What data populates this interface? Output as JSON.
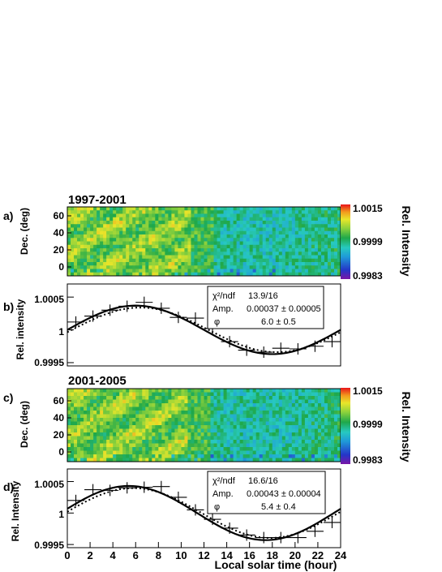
{
  "panels": {
    "a": {
      "letter": "a)",
      "period": "1997-2001",
      "ylabel": "Dec. (deg)",
      "yticks": [
        "60",
        "40",
        "20",
        "0"
      ],
      "colorbar": {
        "label": "Rel. Intensity",
        "max_label": "1.0015",
        "mid_label": "0.9999",
        "min_label": "0.9983"
      }
    },
    "b": {
      "letter": "b)",
      "ylabel": "Rel. intensity",
      "yticks": [
        "1.0005",
        "1",
        "0.9995"
      ],
      "stats": {
        "chi_label": "χ²/ndf",
        "chi_value": "13.9/16",
        "amp_label": "Amp.",
        "amp_value": "0.00037 ±  0.00005",
        "phi_label": "φ",
        "phi_value": "6.0 ±  0.5"
      }
    },
    "c": {
      "letter": "c)",
      "period": "2001-2005",
      "ylabel": "Dec. (deg)",
      "yticks": [
        "60",
        "40",
        "20",
        "0"
      ],
      "colorbar": {
        "label": "Rel. Intensity",
        "max_label": "1.0015",
        "mid_label": "0.9999",
        "min_label": "0.9983"
      }
    },
    "d": {
      "letter": "d)",
      "ylabel": "Rel. Intensity",
      "yticks": [
        "1.0005",
        "1",
        "0.9995"
      ],
      "stats": {
        "chi_label": "χ²/ndf",
        "chi_value": "16.6/16",
        "amp_label": "Amp.",
        "amp_value": "0.00043 ±  0.00004",
        "phi_label": "φ",
        "phi_value": "5.4 ±  0.4"
      }
    }
  },
  "xaxis": {
    "label": "Local solar time (hour)",
    "ticks": [
      "0",
      "2",
      "4",
      "6",
      "8",
      "10",
      "12",
      "14",
      "16",
      "18",
      "20",
      "22",
      "24"
    ]
  },
  "chart_data": [
    {
      "type": "line",
      "panel": "b",
      "x": [
        0.75,
        2.25,
        3.75,
        5.25,
        6.75,
        8.25,
        9.75,
        11.25,
        12.75,
        14.25,
        15.75,
        17.25,
        18.75,
        20.25,
        21.75,
        23.25
      ],
      "y": [
        1.00012,
        1.00021,
        1.0003,
        1.00036,
        1.00042,
        1.00033,
        1.00019,
        1.00018,
        1.00002,
        0.99982,
        0.99969,
        0.99966,
        0.99972,
        0.99971,
        0.99975,
        0.99982
      ],
      "fit": {
        "amplitude": 0.00037,
        "phase_hours": 6.0,
        "period_hours": 24
      },
      "ylim": [
        0.99945,
        1.0007
      ],
      "xlim": [
        0,
        24
      ]
    },
    {
      "type": "line",
      "panel": "d",
      "x": [
        0.75,
        2.25,
        3.75,
        5.25,
        6.75,
        8.25,
        9.75,
        11.25,
        12.75,
        14.25,
        15.75,
        17.25,
        18.75,
        20.25,
        21.75,
        23.25
      ],
      "y": [
        1.0002,
        1.00037,
        1.00036,
        1.0004,
        1.00041,
        1.00042,
        1.00025,
        1.00005,
        0.9999,
        0.99976,
        0.99965,
        0.99961,
        0.99961,
        0.99961,
        0.99971,
        0.99985
      ],
      "fit": {
        "amplitude": 0.00043,
        "phase_hours": 5.4,
        "period_hours": 24
      },
      "ylim": [
        0.99945,
        1.0007
      ],
      "xlim": [
        0,
        24
      ]
    }
  ]
}
